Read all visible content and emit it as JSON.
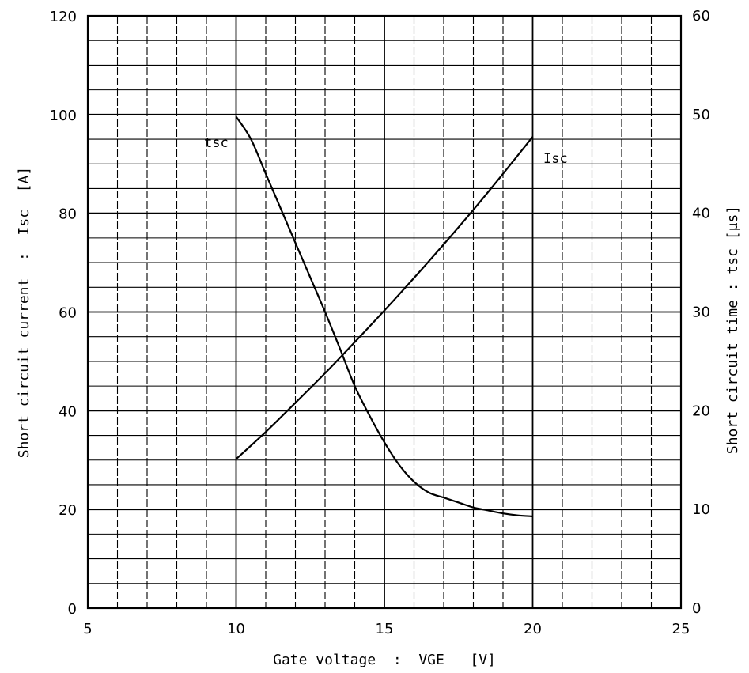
{
  "chart_data": {
    "type": "line",
    "title": "",
    "xlabel": "Gate voltage  :  VGE   [V]",
    "ylabel_left": "Short circuit current  :  Isc  [A]",
    "ylabel_right": "Short circuit time : tsc [μs]",
    "xlim": [
      5,
      25
    ],
    "ylim_left": [
      0,
      120
    ],
    "ylim_right": [
      0,
      60
    ],
    "x_ticks": [
      "5",
      "10",
      "15",
      "20",
      "25"
    ],
    "y_ticks_left": [
      "0",
      "20",
      "40",
      "60",
      "80",
      "100",
      "120"
    ],
    "y_ticks_right": [
      "0",
      "10",
      "20",
      "30",
      "40",
      "50",
      "60"
    ],
    "grid": true,
    "series": [
      {
        "name": "Isc",
        "axis": "left",
        "x": [
          10,
          11,
          12,
          13,
          14,
          15,
          16,
          17,
          18,
          19,
          20
        ],
        "y": [
          30.2,
          35.7,
          41.6,
          47.6,
          53.9,
          60.3,
          66.9,
          73.7,
          80.7,
          88.0,
          95.5
        ]
      },
      {
        "name": "tsc",
        "axis": "right",
        "x": [
          10,
          10.5,
          11,
          11.5,
          12,
          12.5,
          13,
          13.5,
          14,
          14.5,
          15,
          15.5,
          16,
          16.5,
          17,
          17.5,
          18,
          18.5,
          19,
          19.5,
          20
        ],
        "y": [
          49.8,
          47.5,
          44.0,
          40.5,
          37.0,
          33.5,
          30.0,
          26.3,
          22.5,
          19.5,
          16.8,
          14.5,
          12.8,
          11.7,
          11.2,
          10.7,
          10.2,
          9.9,
          9.6,
          9.4,
          9.3
        ]
      }
    ],
    "annotations": [
      {
        "text": "tsc",
        "target": "tsc"
      },
      {
        "text": "Isc",
        "target": "Isc"
      }
    ],
    "colors": {
      "line": "#000000",
      "grid": "#000000",
      "background": "#ffffff"
    }
  }
}
